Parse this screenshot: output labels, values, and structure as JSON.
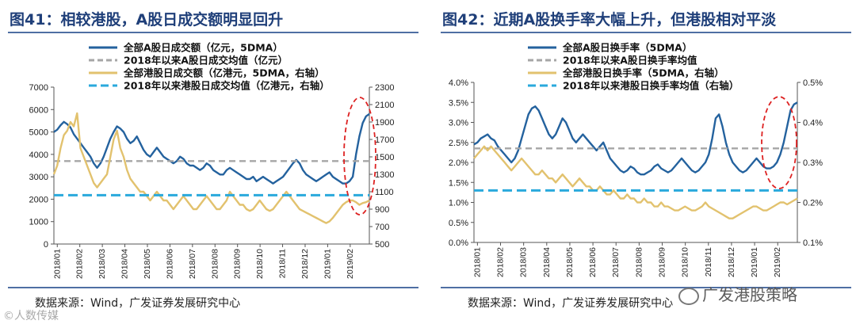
{
  "watermark_right": "广发港股策略",
  "watermark_left": "©人数传媒",
  "chart_data": [
    {
      "type": "line",
      "title": "图41：相较港股，A股日成交额明显回升",
      "source": "数据来源：Wind，广发证券发展研究中心",
      "x_ticks": [
        "2018/01",
        "2018/02",
        "2018/03",
        "2018/04",
        "2018/05",
        "2018/06",
        "2018/07",
        "2018/08",
        "2018/09",
        "2018/10",
        "2018/11",
        "2018/12",
        "2019/01",
        "2019/02"
      ],
      "ylim_left": [
        0,
        7000
      ],
      "yticks_left": [
        "0",
        "1000",
        "2000",
        "3000",
        "4000",
        "5000",
        "6000",
        "7000"
      ],
      "ylim_right": [
        500,
        2300
      ],
      "yticks_right": [
        "500",
        "700",
        "900",
        "1100",
        "1300",
        "1500",
        "1700",
        "1900",
        "2100",
        "2300"
      ],
      "series": [
        {
          "name": "全部A股日成交额（亿元，5DMA）",
          "axis": "left",
          "color": "#24629e",
          "style": "solid",
          "values": [
            5000,
            5100,
            5300,
            5450,
            5350,
            5200,
            4900,
            4700,
            4500,
            4300,
            4100,
            3900,
            3600,
            3400,
            3600,
            3900,
            4300,
            4700,
            5000,
            5250,
            5150,
            5000,
            4700,
            4500,
            4600,
            4800,
            4500,
            4200,
            4000,
            3900,
            4100,
            4300,
            4100,
            3900,
            3800,
            3700,
            3600,
            3700,
            3900,
            3800,
            3600,
            3500,
            3500,
            3400,
            3300,
            3400,
            3600,
            3500,
            3300,
            3200,
            3100,
            3100,
            3300,
            3400,
            3300,
            3200,
            3100,
            3000,
            2900,
            2900,
            3000,
            2800,
            2900,
            3000,
            2900,
            2800,
            2700,
            2800,
            2900,
            3000,
            3200,
            3400,
            3600,
            3750,
            3600,
            3300,
            3100,
            3000,
            2900,
            2800,
            2900,
            3000,
            3100,
            3200,
            3000,
            2900,
            2800,
            2700,
            2700,
            2800,
            3000,
            4000,
            4800,
            5400,
            5700,
            5800
          ]
        },
        {
          "name": "2018年以来A股日成交均值（亿元）",
          "axis": "left",
          "color": "#a6a6a6",
          "style": "dashed",
          "values": [
            3700
          ]
        },
        {
          "name": "全部港股日成交额（亿港元，5DMA，右轴）",
          "axis": "right",
          "color": "#e2c26e",
          "style": "solid",
          "values": [
            1300,
            1400,
            1600,
            1750,
            1800,
            1900,
            1850,
            2000,
            1600,
            1500,
            1400,
            1300,
            1200,
            1150,
            1200,
            1250,
            1300,
            1500,
            1700,
            1800,
            1600,
            1500,
            1350,
            1250,
            1200,
            1150,
            1100,
            1100,
            1050,
            1000,
            1050,
            1100,
            1050,
            1000,
            1000,
            950,
            900,
            950,
            1000,
            1050,
            1000,
            950,
            900,
            900,
            950,
            1000,
            1050,
            1000,
            950,
            900,
            900,
            950,
            1000,
            1100,
            1050,
            1000,
            950,
            950,
            900,
            880,
            900,
            950,
            1000,
            950,
            900,
            880,
            900,
            950,
            1000,
            1050,
            1100,
            1050,
            1000,
            950,
            900,
            880,
            860,
            840,
            820,
            800,
            780,
            760,
            740,
            760,
            800,
            850,
            900,
            950,
            980,
            1000,
            1000,
            980,
            950,
            970,
            980,
            1000
          ]
        },
        {
          "name": "2018年以来港股日成交均值（亿港元，右轴）",
          "axis": "right",
          "color": "#2aa9dc",
          "style": "dashed",
          "values": [
            1060
          ]
        }
      ]
    },
    {
      "type": "line",
      "title": "图42：近期A股换手率大幅上升，但港股相对平淡",
      "source": "数据来源：Wind，广发证券发展研究中心",
      "x_ticks": [
        "2018/01",
        "2018/02",
        "2018/03",
        "2018/04",
        "2018/05",
        "2018/06",
        "2018/07",
        "2018/08",
        "2018/09",
        "2018/10",
        "2018/11",
        "2018/12",
        "2019/01",
        "2019/02"
      ],
      "ylim_left": [
        0,
        4
      ],
      "yticks_left": [
        "0.0%",
        "0.5%",
        "1.0%",
        "1.5%",
        "2.0%",
        "2.5%",
        "3.0%",
        "3.5%",
        "4.0%"
      ],
      "ylim_right": [
        0.1,
        0.5
      ],
      "yticks_right": [
        "0.1%",
        "0.2%",
        "0.3%",
        "0.4%",
        "0.5%"
      ],
      "series": [
        {
          "name": "全部A股日换手率（5DMA）",
          "axis": "left",
          "color": "#24629e",
          "style": "solid",
          "values": [
            2.45,
            2.5,
            2.6,
            2.65,
            2.7,
            2.6,
            2.55,
            2.4,
            2.3,
            2.2,
            2.1,
            2.0,
            2.1,
            2.3,
            2.6,
            2.9,
            3.2,
            3.35,
            3.4,
            3.3,
            3.1,
            2.9,
            2.7,
            2.6,
            2.7,
            2.9,
            3.1,
            3.0,
            2.8,
            2.6,
            2.5,
            2.6,
            2.7,
            2.6,
            2.5,
            2.4,
            2.3,
            2.4,
            2.5,
            2.3,
            2.1,
            2.0,
            1.9,
            1.8,
            1.75,
            1.8,
            1.9,
            1.85,
            1.75,
            1.7,
            1.7,
            1.75,
            1.8,
            1.9,
            1.95,
            1.85,
            1.8,
            1.75,
            1.8,
            1.9,
            2.0,
            2.1,
            2.0,
            1.9,
            1.8,
            1.75,
            1.8,
            1.9,
            2.0,
            2.2,
            2.6,
            3.1,
            3.2,
            2.9,
            2.5,
            2.2,
            2.0,
            1.9,
            1.8,
            1.75,
            1.8,
            1.9,
            2.0,
            2.1,
            2.0,
            1.9,
            1.85,
            1.85,
            1.9,
            2.0,
            2.2,
            2.5,
            2.9,
            3.3,
            3.45,
            3.5
          ]
        },
        {
          "name": "2018年以来A股日换手率均值",
          "axis": "left",
          "color": "#a6a6a6",
          "style": "dashed",
          "values": [
            2.35
          ]
        },
        {
          "name": "全部港股日换手率（5DMA，右轴）",
          "axis": "right",
          "color": "#e2c26e",
          "style": "solid",
          "values": [
            0.31,
            0.32,
            0.33,
            0.34,
            0.33,
            0.34,
            0.33,
            0.32,
            0.31,
            0.3,
            0.29,
            0.28,
            0.29,
            0.3,
            0.31,
            0.3,
            0.29,
            0.28,
            0.27,
            0.27,
            0.28,
            0.27,
            0.26,
            0.26,
            0.25,
            0.26,
            0.27,
            0.26,
            0.25,
            0.24,
            0.25,
            0.26,
            0.25,
            0.24,
            0.24,
            0.23,
            0.23,
            0.24,
            0.23,
            0.22,
            0.22,
            0.23,
            0.22,
            0.21,
            0.21,
            0.22,
            0.21,
            0.21,
            0.2,
            0.2,
            0.21,
            0.2,
            0.2,
            0.19,
            0.19,
            0.2,
            0.19,
            0.19,
            0.185,
            0.18,
            0.18,
            0.185,
            0.19,
            0.185,
            0.18,
            0.18,
            0.185,
            0.19,
            0.2,
            0.19,
            0.185,
            0.18,
            0.175,
            0.17,
            0.165,
            0.16,
            0.16,
            0.165,
            0.17,
            0.175,
            0.18,
            0.185,
            0.19,
            0.19,
            0.185,
            0.18,
            0.18,
            0.185,
            0.19,
            0.195,
            0.2,
            0.2,
            0.195,
            0.2,
            0.205,
            0.21
          ]
        },
        {
          "name": "2018年以来港股日换手率均值（右轴）",
          "axis": "right",
          "color": "#2aa9dc",
          "style": "dashed",
          "values": [
            0.23
          ]
        }
      ]
    }
  ]
}
